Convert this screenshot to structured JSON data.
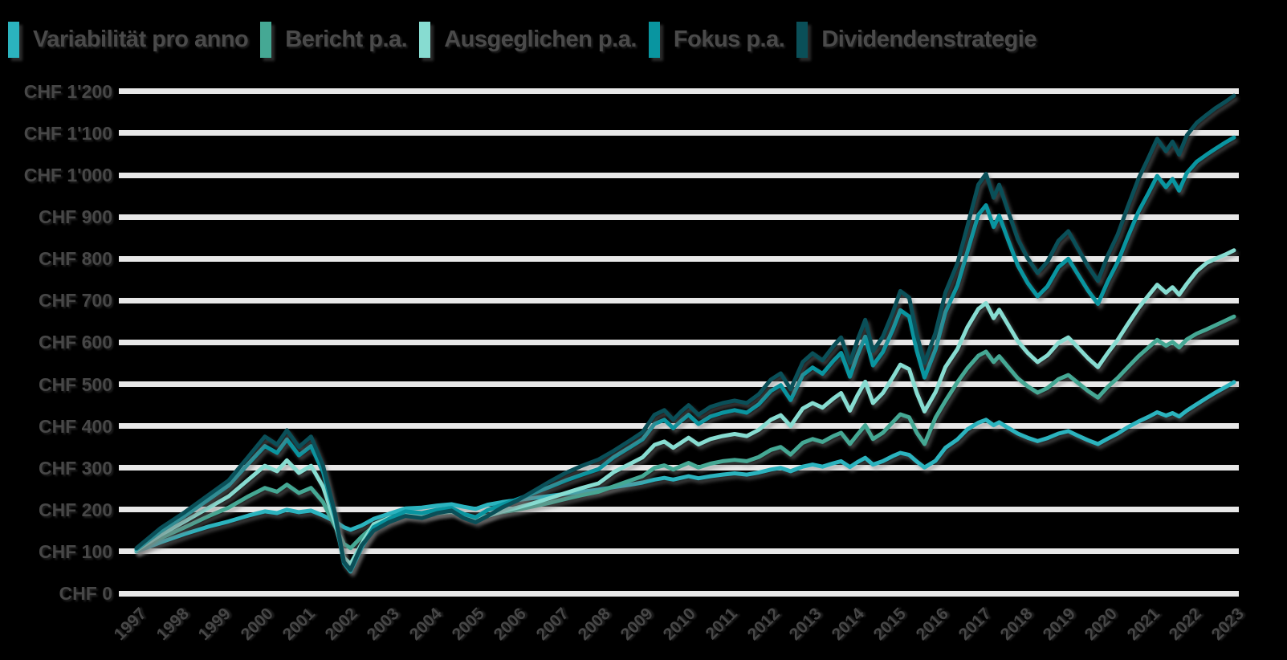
{
  "colors": {
    "background": "#000000",
    "grid": "#e8e8e8",
    "axis_text": "#474747",
    "legend_text": "#4a4a4a"
  },
  "legend": {
    "items": [
      {
        "label": "Variabilität pro anno",
        "color": "#2BB3BE"
      },
      {
        "label": "Bericht p.a.",
        "color": "#45A894"
      },
      {
        "label": "Ausgeglichen p.a.",
        "color": "#87DCD1"
      },
      {
        "label": "Fokus p.a.",
        "color": "#0995A0"
      },
      {
        "label": "Dividendenstrategie",
        "color": "#0A4F58"
      }
    ]
  },
  "y_axis": {
    "currency": "CHF",
    "min": 0,
    "max": 1200,
    "step": 100,
    "labels_top_to_bottom": [
      "CHF 1'200",
      "CHF 1'100",
      "CHF 1'000",
      "CHF 900",
      "CHF 800",
      "CHF 700",
      "CHF 600",
      "CHF 500",
      "CHF 400",
      "CHF 300",
      "CHF 200",
      "CHF 100",
      "CHF 0"
    ]
  },
  "x_axis": {
    "labels": [
      "1997",
      "1998",
      "1999",
      "2000",
      "2001",
      "2002",
      "2003",
      "2004",
      "2005",
      "2006",
      "2007",
      "2008",
      "2009",
      "2010",
      "2011",
      "2012",
      "2013",
      "2014",
      "2015",
      "2016",
      "2017",
      "2018",
      "2019",
      "2020",
      "2021",
      "2022",
      "2023"
    ]
  },
  "chart_data": {
    "type": "line",
    "title": "",
    "xlabel": "",
    "ylabel": "CHF",
    "ylim": [
      0,
      1200
    ],
    "grid": "horizontal",
    "legend_position": "top",
    "x_categories": [
      "1997",
      "1998",
      "1999",
      "2000",
      "2001",
      "2002",
      "2003",
      "2004",
      "2005",
      "2006",
      "2007",
      "2008",
      "2009",
      "2010",
      "2011",
      "2012",
      "2013",
      "2014",
      "2015",
      "2016",
      "2017",
      "2018",
      "2019",
      "2020",
      "2021",
      "2022",
      "2023"
    ],
    "x": [
      0.0,
      0.022,
      0.044,
      0.066,
      0.084,
      0.102,
      0.117,
      0.128,
      0.137,
      0.148,
      0.159,
      0.17,
      0.181,
      0.189,
      0.195,
      0.205,
      0.216,
      0.23,
      0.245,
      0.26,
      0.274,
      0.287,
      0.298,
      0.309,
      0.32,
      0.333,
      0.347,
      0.362,
      0.377,
      0.391,
      0.406,
      0.421,
      0.435,
      0.45,
      0.461,
      0.472,
      0.481,
      0.489,
      0.496,
      0.503,
      0.512,
      0.523,
      0.534,
      0.545,
      0.556,
      0.567,
      0.578,
      0.587,
      0.596,
      0.607,
      0.616,
      0.625,
      0.635,
      0.642,
      0.65,
      0.657,
      0.664,
      0.671,
      0.68,
      0.689,
      0.696,
      0.704,
      0.711,
      0.718,
      0.728,
      0.737,
      0.748,
      0.757,
      0.767,
      0.774,
      0.781,
      0.786,
      0.794,
      0.803,
      0.812,
      0.821,
      0.83,
      0.84,
      0.849,
      0.857,
      0.867,
      0.876,
      0.885,
      0.894,
      0.903,
      0.913,
      0.922,
      0.93,
      0.938,
      0.944,
      0.95,
      0.957,
      0.966,
      0.975,
      0.983,
      0.992,
      1.0
    ],
    "series": [
      {
        "name": "Variabilität pro anno",
        "color": "#2BB3BE",
        "values": [
          100,
          122,
          142,
          160,
          172,
          186,
          196,
          192,
          200,
          194,
          198,
          186,
          172,
          158,
          152,
          162,
          178,
          190,
          203,
          205,
          210,
          213,
          207,
          202,
          212,
          218,
          223,
          228,
          233,
          238,
          243,
          248,
          254,
          260,
          265,
          272,
          276,
          272,
          276,
          280,
          275,
          280,
          284,
          287,
          284,
          289,
          296,
          300,
          292,
          303,
          308,
          303,
          311,
          316,
          302,
          314,
          324,
          308,
          316,
          328,
          336,
          331,
          315,
          301,
          317,
          348,
          368,
          392,
          408,
          415,
          402,
          409,
          396,
          382,
          372,
          364,
          371,
          382,
          388,
          378,
          366,
          357,
          370,
          382,
          397,
          411,
          422,
          433,
          425,
          431,
          423,
          437,
          452,
          467,
          480,
          493,
          505
        ]
      },
      {
        "name": "Bericht p.a.",
        "color": "#45A894",
        "values": [
          102,
          132,
          158,
          185,
          205,
          232,
          252,
          243,
          260,
          240,
          252,
          218,
          160,
          118,
          108,
          135,
          160,
          176,
          188,
          186,
          191,
          194,
          186,
          180,
          186,
          194,
          200,
          208,
          217,
          226,
          235,
          243,
          256,
          270,
          280,
          300,
          306,
          296,
          304,
          312,
          301,
          310,
          316,
          319,
          316,
          326,
          343,
          350,
          332,
          360,
          369,
          362,
          376,
          384,
          357,
          380,
          402,
          369,
          384,
          409,
          428,
          421,
          384,
          357,
          420,
          460,
          505,
          538,
          568,
          578,
          553,
          567,
          542,
          514,
          495,
          480,
          491,
          512,
          522,
          505,
          484,
          468,
          494,
          515,
          540,
          567,
          588,
          606,
          592,
          601,
          588,
          607,
          621,
          631,
          641,
          652,
          662
        ]
      },
      {
        "name": "Ausgeglichen p.a.",
        "color": "#87DCD1",
        "values": [
          103,
          140,
          172,
          205,
          232,
          272,
          305,
          292,
          318,
          288,
          305,
          255,
          168,
          85,
          70,
          118,
          165,
          180,
          190,
          186,
          193,
          196,
          184,
          177,
          185,
          196,
          205,
          216,
          228,
          240,
          252,
          263,
          290,
          310,
          325,
          355,
          363,
          348,
          360,
          372,
          356,
          369,
          376,
          381,
          376,
          391,
          415,
          426,
          400,
          442,
          455,
          444,
          466,
          479,
          437,
          474,
          506,
          455,
          479,
          516,
          547,
          536,
          479,
          435,
          481,
          541,
          584,
          636,
          680,
          694,
          658,
          678,
          643,
          603,
          575,
          553,
          569,
          599,
          612,
          590,
          562,
          541,
          575,
          606,
          643,
          682,
          712,
          738,
          719,
          732,
          714,
          740,
          770,
          790,
          800,
          810,
          820
        ]
      },
      {
        "name": "Fokus p.a.",
        "color": "#0995A0",
        "values": [
          105,
          148,
          185,
          225,
          258,
          310,
          352,
          336,
          368,
          330,
          352,
          290,
          182,
          72,
          52,
          108,
          158,
          178,
          196,
          192,
          200,
          204,
          190,
          182,
          199,
          212,
          225,
          240,
          255,
          270,
          284,
          297,
          326,
          350,
          368,
          405,
          415,
          395,
          412,
          427,
          405,
          423,
          432,
          438,
          432,
          452,
          484,
          498,
          462,
          522,
          540,
          525,
          556,
          575,
          518,
          570,
          614,
          545,
          577,
          630,
          677,
          662,
          580,
          516,
          583,
          672,
          736,
          816,
          905,
          928,
          876,
          903,
          846,
          784,
          742,
          710,
          734,
          780,
          800,
          766,
          724,
          692,
          746,
          792,
          851,
          913,
          957,
          998,
          971,
          991,
          963,
          1005,
          1032,
          1049,
          1063,
          1078,
          1090
        ]
      },
      {
        "name": "Dividendenstrategie",
        "color": "#0A4F58",
        "values": [
          108,
          156,
          194,
          236,
          270,
          327,
          375,
          356,
          390,
          350,
          375,
          305,
          190,
          75,
          56,
          114,
          150,
          170,
          185,
          180,
          192,
          198,
          180,
          170,
          185,
          205,
          222,
          245,
          268,
          288,
          305,
          320,
          341,
          366,
          385,
          427,
          438,
          415,
          434,
          450,
          427,
          446,
          455,
          461,
          455,
          476,
          511,
          526,
          488,
          553,
          574,
          557,
          591,
          612,
          551,
          606,
          654,
          579,
          614,
          671,
          723,
          707,
          618,
          551,
          623,
          719,
          789,
          877,
          977,
          1003,
          946,
          977,
          915,
          847,
          801,
          766,
          793,
          843,
          866,
          828,
          782,
          747,
          808,
          858,
          923,
          992,
          1041,
          1087,
          1057,
          1080,
          1049,
          1095,
          1125,
          1144,
          1160,
          1175,
          1190
        ]
      }
    ]
  }
}
